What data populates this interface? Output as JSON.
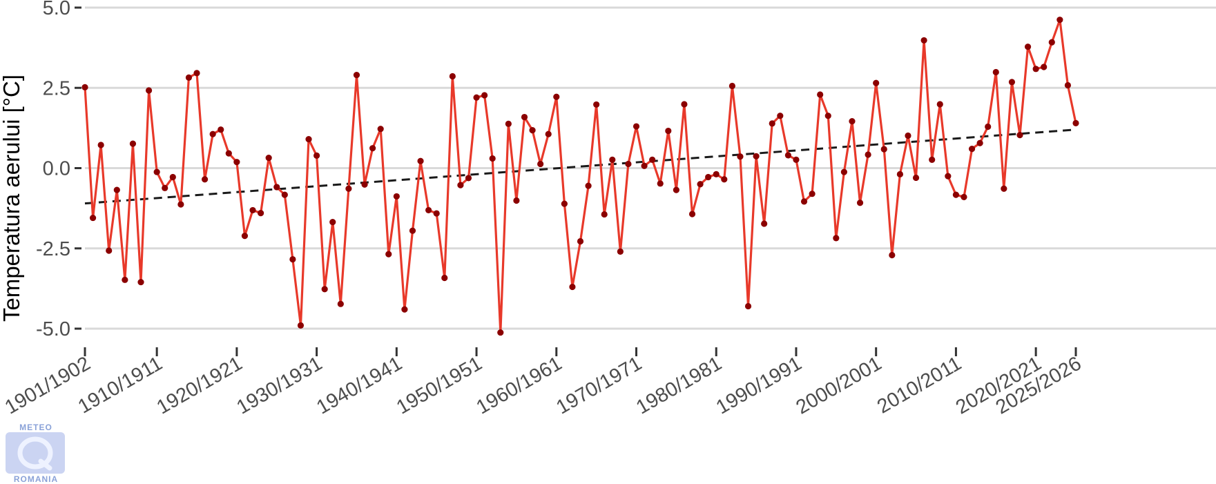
{
  "chart_data": {
    "type": "line",
    "title": "",
    "xlabel": "",
    "ylabel": "Temperatura aerului [°C]",
    "ylim": [
      -5.3,
      5.0
    ],
    "yticks": [
      5.0,
      2.5,
      0.0,
      -2.5,
      -5.0
    ],
    "ytick_labels": [
      "5.0",
      "2.5",
      "0.0",
      "-2.5",
      "-5.0"
    ],
    "xlim": [
      1901,
      2025
    ],
    "xticks": [
      1901,
      1910,
      1920,
      1930,
      1940,
      1950,
      1960,
      1970,
      1980,
      1990,
      2000,
      2010,
      2020,
      2025
    ],
    "xtick_labels": [
      "1901/1902",
      "1910/1911",
      "1920/1921",
      "1930/1931",
      "1940/1941",
      "1950/1951",
      "1960/1961",
      "1970/1971",
      "1980/1981",
      "1990/1991",
      "2000/2001",
      "2010/2011",
      "2020/2021",
      "2025/2026"
    ],
    "grid": true,
    "series": [
      {
        "color": "#e8392a",
        "marker_color": "#8b0000",
        "x": [
          1901,
          1902,
          1903,
          1904,
          1905,
          1906,
          1907,
          1908,
          1909,
          1910,
          1911,
          1912,
          1913,
          1914,
          1915,
          1916,
          1917,
          1918,
          1919,
          1920,
          1921,
          1922,
          1923,
          1924,
          1925,
          1926,
          1927,
          1928,
          1929,
          1930,
          1931,
          1932,
          1933,
          1934,
          1935,
          1936,
          1937,
          1938,
          1939,
          1940,
          1941,
          1942,
          1943,
          1944,
          1945,
          1946,
          1947,
          1948,
          1949,
          1950,
          1951,
          1952,
          1953,
          1954,
          1955,
          1956,
          1957,
          1958,
          1959,
          1960,
          1961,
          1962,
          1963,
          1964,
          1965,
          1966,
          1967,
          1968,
          1969,
          1970,
          1971,
          1972,
          1973,
          1974,
          1975,
          1976,
          1977,
          1978,
          1979,
          1980,
          1981,
          1982,
          1983,
          1984,
          1985,
          1986,
          1987,
          1988,
          1989,
          1990,
          1991,
          1992,
          1993,
          1994,
          1995,
          1996,
          1997,
          1998,
          1999,
          2000,
          2001,
          2002,
          2003,
          2004,
          2005,
          2006,
          2007,
          2008,
          2009,
          2010,
          2011,
          2012,
          2013,
          2014,
          2015,
          2016,
          2017,
          2018,
          2019,
          2020,
          2021,
          2022,
          2023,
          2024,
          2025
        ],
        "values": [
          2.52,
          -1.55,
          0.72,
          -2.57,
          -0.68,
          -3.48,
          0.76,
          -3.55,
          2.42,
          -0.12,
          -0.62,
          -0.28,
          -1.13,
          2.82,
          2.96,
          -0.35,
          1.06,
          1.2,
          0.46,
          0.19,
          -2.11,
          -1.31,
          -1.4,
          0.32,
          -0.59,
          -0.83,
          -2.84,
          -4.9,
          0.9,
          0.39,
          -3.77,
          -1.68,
          -4.23,
          -0.64,
          2.9,
          -0.51,
          0.62,
          1.22,
          -2.68,
          -0.88,
          -4.4,
          -1.95,
          0.22,
          -1.31,
          -1.41,
          -3.42,
          2.86,
          -0.53,
          -0.31,
          2.2,
          2.27,
          0.3,
          -5.12,
          1.38,
          -1.01,
          1.59,
          1.18,
          0.13,
          1.06,
          2.22,
          -1.11,
          -3.7,
          -2.28,
          -0.55,
          1.98,
          -1.44,
          0.26,
          -2.6,
          0.13,
          1.3,
          0.07,
          0.26,
          -0.48,
          1.16,
          -0.68,
          1.99,
          -1.43,
          -0.5,
          -0.28,
          -0.19,
          -0.35,
          2.56,
          0.36,
          -4.3,
          0.37,
          -1.73,
          1.39,
          1.63,
          0.4,
          0.26,
          -1.04,
          -0.8,
          2.29,
          1.63,
          -2.18,
          -0.12,
          1.46,
          -1.08,
          0.42,
          2.65,
          0.59,
          -2.71,
          -0.19,
          1.01,
          -0.3,
          3.98,
          0.26,
          1.99,
          -0.25,
          -0.83,
          -0.9,
          0.6,
          0.78,
          1.29,
          2.99,
          -0.64,
          2.68,
          1.03,
          3.78,
          3.09,
          3.15,
          3.92,
          4.62,
          2.58,
          1.4
        ]
      },
      {
        "style": "dashed",
        "color": "#1a1a1a",
        "x": [
          1901,
          2025
        ],
        "values": [
          -1.1,
          1.2
        ]
      }
    ]
  },
  "logo": {
    "top_text": "METEO",
    "bottom_text": "ROMANIA"
  }
}
